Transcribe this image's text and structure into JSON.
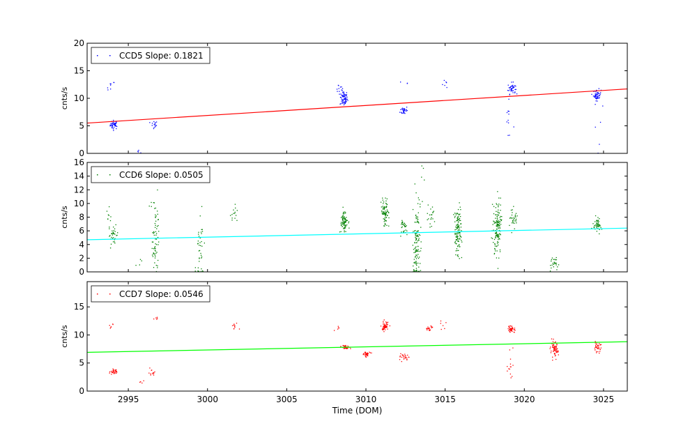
{
  "chart_data": [
    {
      "type": "scatter",
      "series": [
        {
          "name": "CCD5 Slope: 0.1821",
          "color": "#0000ff",
          "clusters": [
            {
              "x": 2994.1,
              "y_center": 5.2,
              "spread": 0.4,
              "count": 40
            },
            {
              "x": 2993.9,
              "y_center": 12.0,
              "spread": 0.6,
              "count": 8
            },
            {
              "x": 2995.7,
              "y_center": 0.5,
              "spread": 0.2,
              "count": 4
            },
            {
              "x": 2996.6,
              "y_center": 5.1,
              "spread": 0.4,
              "count": 14
            },
            {
              "x": 3008.6,
              "y_center": 10.0,
              "spread": 0.7,
              "count": 70
            },
            {
              "x": 3008.3,
              "y_center": 11.8,
              "spread": 0.5,
              "count": 8
            },
            {
              "x": 3012.4,
              "y_center": 7.8,
              "spread": 0.4,
              "count": 30
            },
            {
              "x": 3012.6,
              "y_center": 12.5,
              "spread": 0.4,
              "count": 3
            },
            {
              "x": 3015.0,
              "y_center": 13.0,
              "spread": 0.5,
              "count": 6
            },
            {
              "x": 3019.2,
              "y_center": 11.8,
              "spread": 0.5,
              "count": 40
            },
            {
              "x": 3019.0,
              "y_center": 5.5,
              "spread": 2.5,
              "count": 12
            },
            {
              "x": 3024.6,
              "y_center": 10.6,
              "spread": 0.5,
              "count": 50
            },
            {
              "x": 3024.7,
              "y_center": 3.5,
              "spread": 2.5,
              "count": 5
            }
          ]
        }
      ],
      "fit": {
        "slope": 0.1821,
        "y_start": 5.5,
        "y_end": 11.7,
        "color": "#ff0000"
      },
      "title": "",
      "xlabel": "",
      "ylabel": "cnts/s",
      "xlim": [
        2992.4,
        3026.5
      ],
      "ylim": [
        0,
        20
      ],
      "yticks": [
        0,
        5,
        10,
        15,
        20
      ],
      "xticks": [
        2995,
        3000,
        3005,
        3010,
        3015,
        3020,
        3025
      ],
      "show_x_tick_labels": false,
      "grid": false,
      "legend_position": "top-left"
    },
    {
      "type": "scatter",
      "series": [
        {
          "name": "CCD6 Slope: 0.0505",
          "color": "#008000",
          "clusters": [
            {
              "x": 2994.0,
              "y_center": 5.5,
              "spread": 0.6,
              "count": 35
            },
            {
              "x": 2993.8,
              "y_center": 8.2,
              "spread": 0.6,
              "count": 8
            },
            {
              "x": 2995.7,
              "y_center": 1.3,
              "spread": 0.3,
              "count": 4
            },
            {
              "x": 2996.7,
              "y_center": 4.5,
              "spread": 2.5,
              "count": 60
            },
            {
              "x": 2996.5,
              "y_center": 9.8,
              "spread": 0.5,
              "count": 6
            },
            {
              "x": 2999.5,
              "y_center": 2.8,
              "spread": 2.2,
              "count": 40
            },
            {
              "x": 3001.7,
              "y_center": 8.6,
              "spread": 0.7,
              "count": 14
            },
            {
              "x": 3008.6,
              "y_center": 7.3,
              "spread": 0.8,
              "count": 80
            },
            {
              "x": 3011.2,
              "y_center": 8.5,
              "spread": 0.9,
              "count": 80
            },
            {
              "x": 3012.4,
              "y_center": 6.5,
              "spread": 0.6,
              "count": 30
            },
            {
              "x": 3013.2,
              "y_center": 4.0,
              "spread": 3.2,
              "count": 120
            },
            {
              "x": 3013.5,
              "y_center": 12.0,
              "spread": 2.0,
              "count": 6
            },
            {
              "x": 3014.1,
              "y_center": 8.0,
              "spread": 0.8,
              "count": 20
            },
            {
              "x": 3015.8,
              "y_center": 6.0,
              "spread": 1.8,
              "count": 120
            },
            {
              "x": 3018.3,
              "y_center": 6.5,
              "spread": 2.0,
              "count": 140
            },
            {
              "x": 3019.3,
              "y_center": 8.0,
              "spread": 0.6,
              "count": 30
            },
            {
              "x": 3021.9,
              "y_center": 1.2,
              "spread": 0.5,
              "count": 25
            },
            {
              "x": 3024.6,
              "y_center": 7.0,
              "spread": 0.6,
              "count": 45
            }
          ]
        }
      ],
      "fit": {
        "slope": 0.0505,
        "y_start": 4.7,
        "y_end": 6.4,
        "color": "#00ffff"
      },
      "title": "",
      "xlabel": "",
      "ylabel": "cnts/s",
      "xlim": [
        2992.4,
        3026.5
      ],
      "ylim": [
        0,
        16
      ],
      "yticks": [
        0,
        2,
        4,
        6,
        8,
        10,
        12,
        14,
        16
      ],
      "xticks": [
        2995,
        3000,
        3005,
        3010,
        3015,
        3020,
        3025
      ],
      "show_x_tick_labels": false,
      "grid": false,
      "legend_position": "top-left"
    },
    {
      "type": "scatter",
      "series": [
        {
          "name": "CCD7 Slope: 0.0546",
          "color": "#ff0000",
          "clusters": [
            {
              "x": 2994.1,
              "y_center": 3.4,
              "spread": 0.2,
              "count": 30
            },
            {
              "x": 2993.9,
              "y_center": 11.5,
              "spread": 0.3,
              "count": 6
            },
            {
              "x": 2995.7,
              "y_center": 1.8,
              "spread": 0.2,
              "count": 4
            },
            {
              "x": 2996.5,
              "y_center": 3.3,
              "spread": 0.3,
              "count": 12
            },
            {
              "x": 2996.7,
              "y_center": 13.0,
              "spread": 0.2,
              "count": 5
            },
            {
              "x": 3001.7,
              "y_center": 11.4,
              "spread": 0.3,
              "count": 10
            },
            {
              "x": 3008.7,
              "y_center": 7.8,
              "spread": 0.2,
              "count": 40
            },
            {
              "x": 3008.3,
              "y_center": 11.2,
              "spread": 0.3,
              "count": 5
            },
            {
              "x": 3010.0,
              "y_center": 6.6,
              "spread": 0.2,
              "count": 40
            },
            {
              "x": 3011.2,
              "y_center": 11.5,
              "spread": 0.4,
              "count": 60
            },
            {
              "x": 3012.4,
              "y_center": 6.0,
              "spread": 0.3,
              "count": 25
            },
            {
              "x": 3014.0,
              "y_center": 11.2,
              "spread": 0.3,
              "count": 20
            },
            {
              "x": 3014.9,
              "y_center": 12.2,
              "spread": 0.4,
              "count": 6
            },
            {
              "x": 3019.2,
              "y_center": 11.0,
              "spread": 0.3,
              "count": 40
            },
            {
              "x": 3019.1,
              "y_center": 4.5,
              "spread": 2.5,
              "count": 14
            },
            {
              "x": 3021.9,
              "y_center": 7.3,
              "spread": 0.7,
              "count": 70
            },
            {
              "x": 3024.6,
              "y_center": 7.8,
              "spread": 0.4,
              "count": 35
            }
          ]
        }
      ],
      "fit": {
        "slope": 0.0546,
        "y_start": 6.9,
        "y_end": 8.8,
        "color": "#00ff00"
      },
      "title": "",
      "xlabel": "Time (DOM)",
      "ylabel": "cnts/s",
      "xlim": [
        2992.4,
        3026.5
      ],
      "ylim": [
        0,
        19.5
      ],
      "yticks": [
        0,
        5,
        10,
        15
      ],
      "xticks": [
        2995,
        3000,
        3005,
        3010,
        3015,
        3020,
        3025
      ],
      "show_x_tick_labels": true,
      "grid": false,
      "legend_position": "top-left"
    }
  ]
}
